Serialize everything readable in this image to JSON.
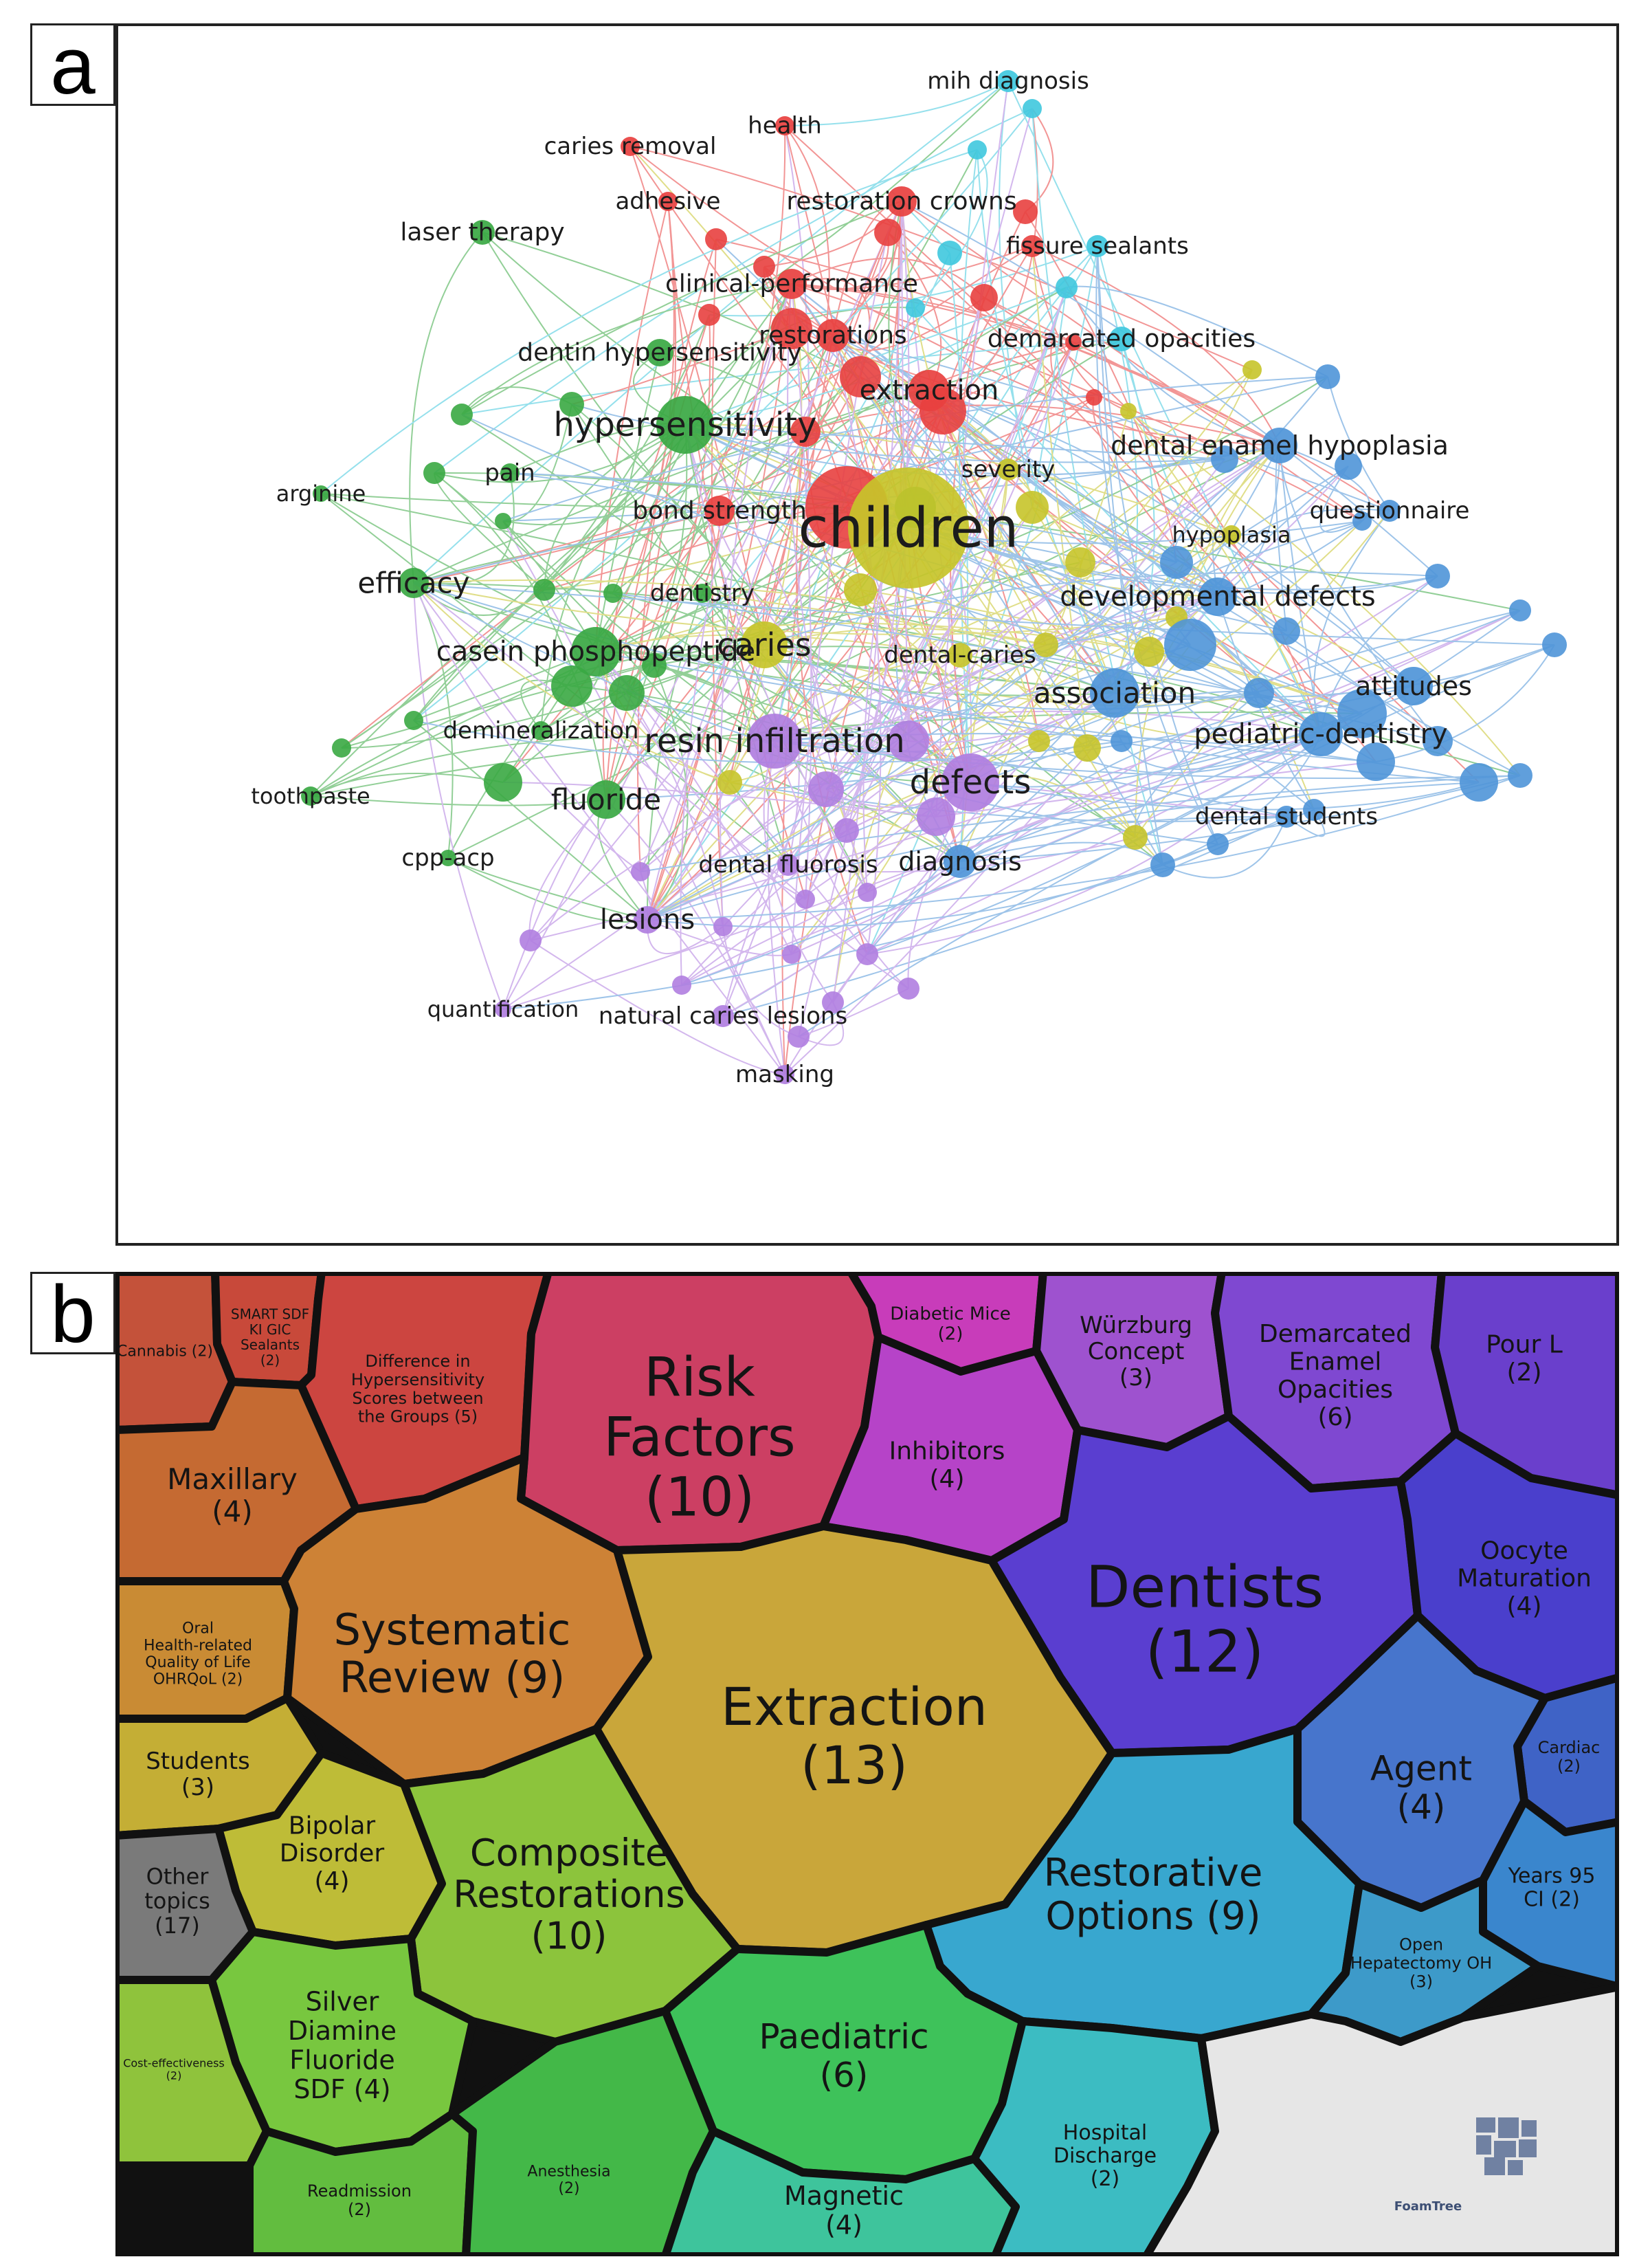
{
  "panel_a": {
    "label": "a",
    "colors": {
      "red": "#e8403f",
      "green": "#3aa843",
      "cyan": "#3fc8de",
      "blue": "#4f95d8",
      "yellow": "#c7c42a",
      "purple": "#b07ee0"
    },
    "nodes": [
      {
        "label": "children",
        "cluster": "yellow",
        "weight": 10
      },
      {
        "label": "hypersensitivity",
        "cluster": "green",
        "weight": 6
      },
      {
        "label": "resin infiltration",
        "cluster": "purple",
        "weight": 5
      },
      {
        "label": "defects",
        "cluster": "purple",
        "weight": 5
      },
      {
        "label": "caries",
        "cluster": "yellow",
        "weight": 5
      },
      {
        "label": "casein phosphopeptide",
        "cluster": "green",
        "weight": 4
      },
      {
        "label": "association",
        "cluster": "blue",
        "weight": 4
      },
      {
        "label": "extraction",
        "cluster": "red",
        "weight": 4
      },
      {
        "label": "developmental defects",
        "cluster": "blue",
        "weight": 3
      },
      {
        "label": "pediatric-dentistry",
        "cluster": "blue",
        "weight": 3
      },
      {
        "label": "dental enamel hypoplasia",
        "cluster": "blue",
        "weight": 3
      },
      {
        "label": "efficacy",
        "cluster": "green",
        "weight": 3
      },
      {
        "label": "fluoride",
        "cluster": "green",
        "weight": 3
      },
      {
        "label": "diagnosis",
        "cluster": "blue",
        "weight": 3
      },
      {
        "label": "lesions",
        "cluster": "purple",
        "weight": 3
      },
      {
        "label": "restoration crowns",
        "cluster": "red",
        "weight": 3
      },
      {
        "label": "clinical-performance",
        "cluster": "red",
        "weight": 2
      },
      {
        "label": "restorations",
        "cluster": "red",
        "weight": 3
      },
      {
        "label": "demarcated opacities",
        "cluster": "cyan",
        "weight": 2
      },
      {
        "label": "dentin hypersensitivity",
        "cluster": "green",
        "weight": 2
      },
      {
        "label": "bond strength",
        "cluster": "red",
        "weight": 2
      },
      {
        "label": "dental-caries",
        "cluster": "yellow",
        "weight": 2
      },
      {
        "label": "demineralization",
        "cluster": "green",
        "weight": 2
      },
      {
        "label": "dental fluorosis",
        "cluster": "purple",
        "weight": 2
      },
      {
        "label": "attitudes",
        "cluster": "blue",
        "weight": 3
      },
      {
        "label": "fissure sealants",
        "cluster": "cyan",
        "weight": 2
      },
      {
        "label": "mih diagnosis",
        "cluster": "cyan",
        "weight": 2
      },
      {
        "label": "laser therapy",
        "cluster": "green",
        "weight": 2
      },
      {
        "label": "caries removal",
        "cluster": "red",
        "weight": 2
      },
      {
        "label": "health",
        "cluster": "red",
        "weight": 2
      },
      {
        "label": "adhesive",
        "cluster": "red",
        "weight": 2
      },
      {
        "label": "severity",
        "cluster": "yellow",
        "weight": 2
      },
      {
        "label": "hypoplasia",
        "cluster": "yellow",
        "weight": 2
      },
      {
        "label": "questionnaire",
        "cluster": "blue",
        "weight": 2
      },
      {
        "label": "arginine",
        "cluster": "green",
        "weight": 1
      },
      {
        "label": "pain",
        "cluster": "green",
        "weight": 2
      },
      {
        "label": "dentistry",
        "cluster": "green",
        "weight": 2
      },
      {
        "label": "toothpaste",
        "cluster": "green",
        "weight": 1
      },
      {
        "label": "cpp-acp",
        "cluster": "green",
        "weight": 1
      },
      {
        "label": "dental students",
        "cluster": "blue",
        "weight": 2
      },
      {
        "label": "quantification",
        "cluster": "purple",
        "weight": 1
      },
      {
        "label": "natural caries lesions",
        "cluster": "purple",
        "weight": 2
      },
      {
        "label": "masking",
        "cluster": "purple",
        "weight": 1
      }
    ]
  },
  "panel_b": {
    "label": "b",
    "cells": [
      {
        "label": "Cannabis (2)",
        "color": "#c4523a"
      },
      {
        "label": "SMART SDF KI GIC Sealants (2)",
        "color": "#c8493a"
      },
      {
        "label": "Difference in Hypersensitivity Scores between the Groups (5)",
        "color": "#cc4540"
      },
      {
        "label": "Risk Factors (10)",
        "color": "#cc3f63"
      },
      {
        "label": "Diabetic Mice (2)",
        "color": "#c83cba"
      },
      {
        "label": "Würzburg Concept (3)",
        "color": "#9e52cf"
      },
      {
        "label": "Demarcated Enamel Opacities (6)",
        "color": "#7f48d1"
      },
      {
        "label": "Pour L (2)",
        "color": "#6a3fcc"
      },
      {
        "label": "Maxillary (4)",
        "color": "#c56a32"
      },
      {
        "label": "Inhibitors (4)",
        "color": "#b643c8"
      },
      {
        "label": "Dentists (12)",
        "color": "#5a3ed0"
      },
      {
        "label": "Oocyte Maturation (4)",
        "color": "#4a3fcc"
      },
      {
        "label": "Oral Health-related Quality of Life OHRQoL (2)",
        "color": "#c98b34"
      },
      {
        "label": "Systematic Review (9)",
        "color": "#cd8236"
      },
      {
        "label": "Extraction (13)",
        "color": "#c9a63a"
      },
      {
        "label": "Cardiac (2)",
        "color": "#3f63c6"
      },
      {
        "label": "Agent (4)",
        "color": "#4775cc"
      },
      {
        "label": "Students (3)",
        "color": "#c4ae35"
      },
      {
        "label": "Bipolar Disorder (4)",
        "color": "#bebc37"
      },
      {
        "label": "Composite Restorations (10)",
        "color": "#8cc43c"
      },
      {
        "label": "Restorative Options (9)",
        "color": "#38a7cf"
      },
      {
        "label": "Years 95 CI (2)",
        "color": "#3a86cd"
      },
      {
        "label": "Other topics (17)",
        "color": "#7a7a7a"
      },
      {
        "label": "Open Hepatectomy OH (3)",
        "color": "#3d9ac9"
      },
      {
        "label": "Silver Diamine Fluoride SDF (4)",
        "color": "#78c73f"
      },
      {
        "label": "Paediatric (6)",
        "color": "#3ec25a"
      },
      {
        "label": "Cost-effectiveness (2)",
        "color": "#8fc33c"
      },
      {
        "label": "Readmission (2)",
        "color": "#62bd3f"
      },
      {
        "label": "Anesthesia (2)",
        "color": "#43b848"
      },
      {
        "label": "Magnetic (4)",
        "color": "#3ec49c"
      },
      {
        "label": "Hospital Discharge (2)",
        "color": "#3cbcc2"
      },
      {
        "label": "FoamTree",
        "color": "#e6e6e6"
      }
    ]
  }
}
